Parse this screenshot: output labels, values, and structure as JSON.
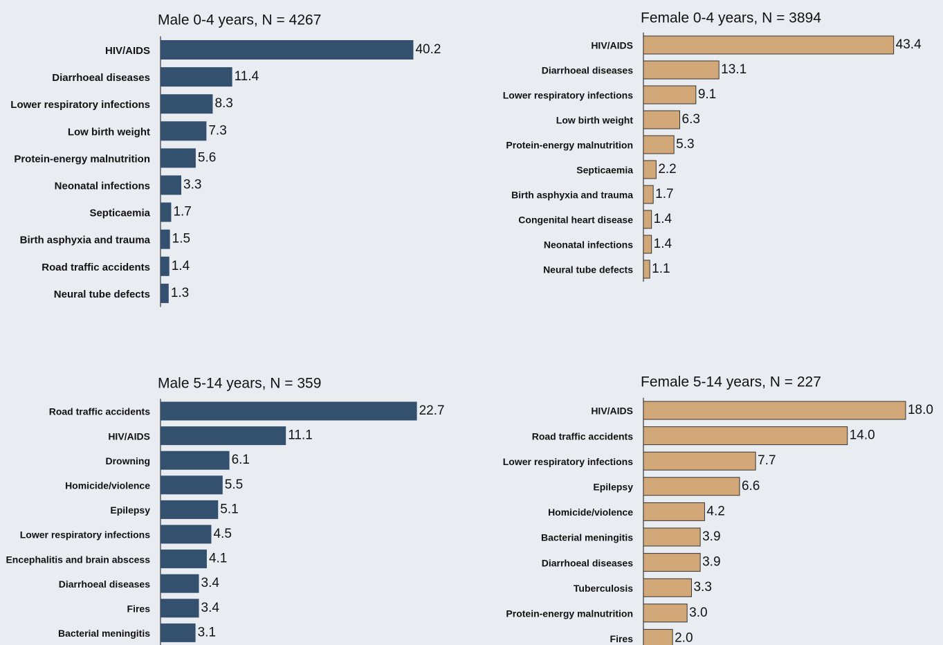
{
  "chart_data": [
    {
      "type": "bar",
      "orientation": "horizontal",
      "title": "Male 0-4 years, N = 4267",
      "color": "#34506f",
      "categories": [
        "HIV/AIDS",
        "Diarrhoeal diseases",
        "Lower respiratory infections",
        "Low birth weight",
        "Protein-energy malnutrition",
        "Neonatal infections",
        "Septicaemia",
        "Birth asphyxia and trauma",
        "Road traffic accidents",
        "Neural tube defects"
      ],
      "values": [
        40.2,
        11.4,
        8.3,
        7.3,
        5.6,
        3.3,
        1.7,
        1.5,
        1.4,
        1.3
      ],
      "value_labels": [
        "40.2",
        "11.4",
        "8.3",
        "7.3",
        "5.6",
        "3.3",
        "1.7",
        "1.5",
        "1.4",
        "1.3"
      ],
      "xlim": [
        0,
        44
      ]
    },
    {
      "type": "bar",
      "orientation": "horizontal",
      "title": "Female 0-4 years, N = 3894",
      "color": "#d2a878",
      "categories": [
        "HIV/AIDS",
        "Diarrhoeal diseases",
        "Lower respiratory infections",
        "Low birth weight",
        "Protein-energy malnutrition",
        "Septicaemia",
        "Birth asphyxia and trauma",
        "Congenital heart disease",
        "Neonatal infections",
        "Neural tube defects"
      ],
      "values": [
        43.4,
        13.1,
        9.1,
        6.3,
        5.3,
        2.2,
        1.7,
        1.4,
        1.4,
        1.1
      ],
      "value_labels": [
        "43.4",
        "13.1",
        "9.1",
        "6.3",
        "5.3",
        "2.2",
        "1.7",
        "1.4",
        "1.4",
        "1.1"
      ],
      "xlim": [
        0,
        48
      ]
    },
    {
      "type": "bar",
      "orientation": "horizontal",
      "title": "Male 5-14 years, N = 359",
      "color": "#34506f",
      "categories": [
        "Road traffic accidents",
        "HIV/AIDS",
        "Drowning",
        "Homicide/violence",
        "Epilepsy",
        "Lower respiratory infections",
        "Encephalitis and brain abscess",
        "Diarrhoeal diseases",
        "Fires",
        "Bacterial meningitis"
      ],
      "values": [
        22.7,
        11.1,
        6.1,
        5.5,
        5.1,
        4.5,
        4.1,
        3.4,
        3.4,
        3.1
      ],
      "value_labels": [
        "22.7",
        "11.1",
        "6.1",
        "5.5",
        "5.1",
        "4.5",
        "4.1",
        "3.4",
        "3.4",
        "3.1"
      ],
      "xlim": [
        0,
        24.5
      ]
    },
    {
      "type": "bar",
      "orientation": "horizontal",
      "title": "Female 5-14 years, N = 227",
      "color": "#d2a878",
      "categories": [
        "HIV/AIDS",
        "Road traffic accidents",
        "Lower respiratory infections",
        "Epilepsy",
        "Homicide/violence",
        "Bacterial meningitis",
        "Diarrhoeal diseases",
        "Tuberculosis",
        "Protein-energy malnutrition",
        "Fires"
      ],
      "values": [
        18.0,
        14.0,
        7.7,
        6.6,
        4.2,
        3.9,
        3.9,
        3.3,
        3.0,
        2.0
      ],
      "value_labels": [
        "18.0",
        "14.0",
        "7.7",
        "6.6",
        "4.2",
        "3.9",
        "3.9",
        "3.3",
        "3.0",
        "2.0"
      ],
      "xlim": [
        0,
        19
      ]
    }
  ]
}
